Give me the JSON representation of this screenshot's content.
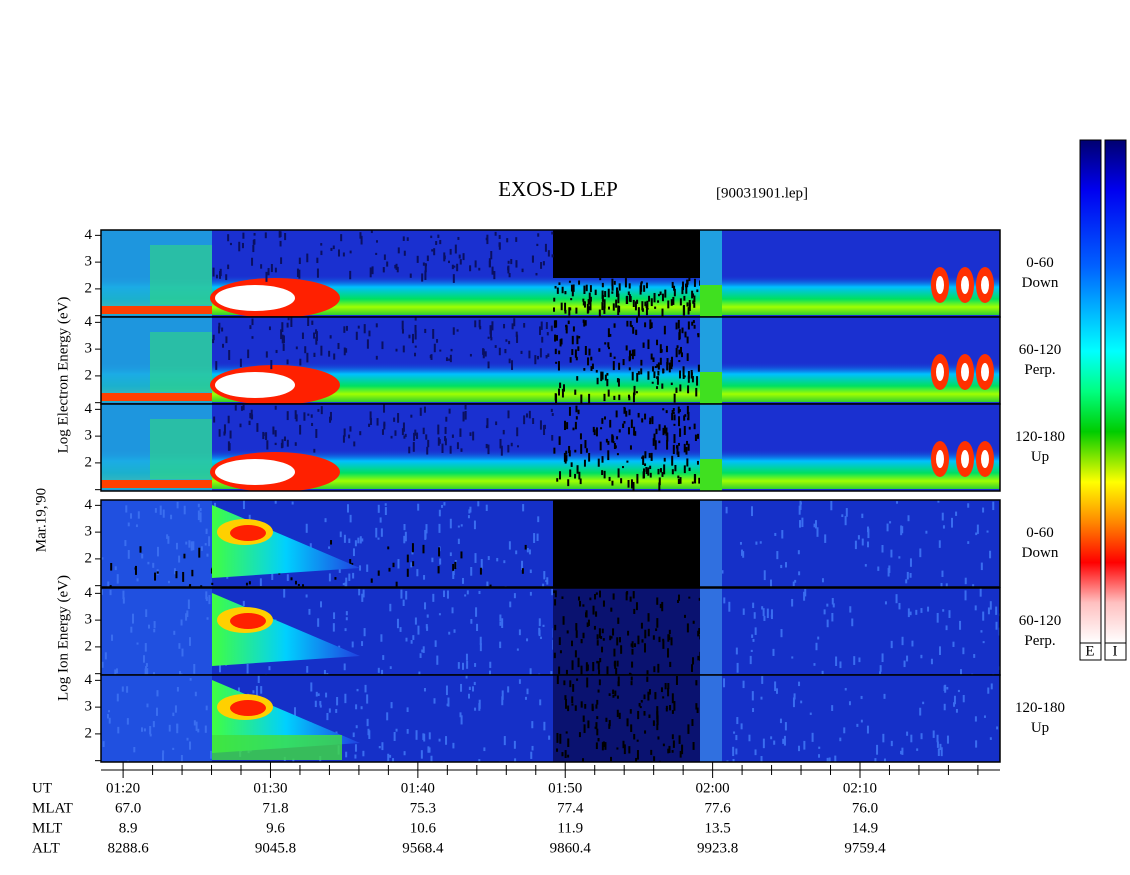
{
  "header": {
    "title": "EXOS-D LEP",
    "file": "[90031901.lep]"
  },
  "side_labels": {
    "electron": "Log Electron Energy (eV)",
    "date": "Mar.19,'90",
    "ion": "Log Ion Energy (eV)"
  },
  "panels": [
    {
      "species": "electron",
      "range": "0-60",
      "direction": "Down"
    },
    {
      "species": "electron",
      "range": "60-120",
      "direction": "Perp."
    },
    {
      "species": "electron",
      "range": "120-180",
      "direction": "Up"
    },
    {
      "species": "ion",
      "range": "0-60",
      "direction": "Down"
    },
    {
      "species": "ion",
      "range": "60-120",
      "direction": "Perp."
    },
    {
      "species": "ion",
      "range": "120-180",
      "direction": "Up"
    }
  ],
  "energy_axis": {
    "ylim": [
      0.95,
      4.2
    ],
    "yticks": [
      2,
      3,
      4
    ],
    "minor_ticks": [
      1
    ]
  },
  "time_axis": {
    "xlim": [
      78.5,
      139.5
    ],
    "xticks": [
      {
        "value": 80,
        "label": "01:20"
      },
      {
        "value": 90,
        "label": "01:30"
      },
      {
        "value": 100,
        "label": "01:40"
      },
      {
        "value": 110,
        "label": "01:50"
      },
      {
        "value": 120,
        "label": "02:00"
      },
      {
        "value": 130,
        "label": "02:10"
      }
    ],
    "minor_ticks": [
      82,
      84,
      86,
      88,
      92,
      94,
      96,
      98,
      102,
      104,
      106,
      108,
      112,
      114,
      116,
      118,
      122,
      124,
      126,
      128,
      132,
      134,
      136,
      138
    ]
  },
  "ephemeris": {
    "labels": [
      "UT",
      "MLAT",
      "MLT",
      "ALT"
    ],
    "rows": [
      [
        "67.0",
        "71.8",
        "75.3",
        "77.4",
        "77.6",
        "76.0"
      ],
      [
        "8.9",
        "9.6",
        "10.6",
        "11.9",
        "13.5",
        "14.9"
      ],
      [
        "8288.6",
        "9045.8",
        "9568.4",
        "9860.4",
        "9923.8",
        "9759.4"
      ]
    ]
  },
  "colorbar": {
    "labels": [
      "E",
      "I"
    ]
  }
}
